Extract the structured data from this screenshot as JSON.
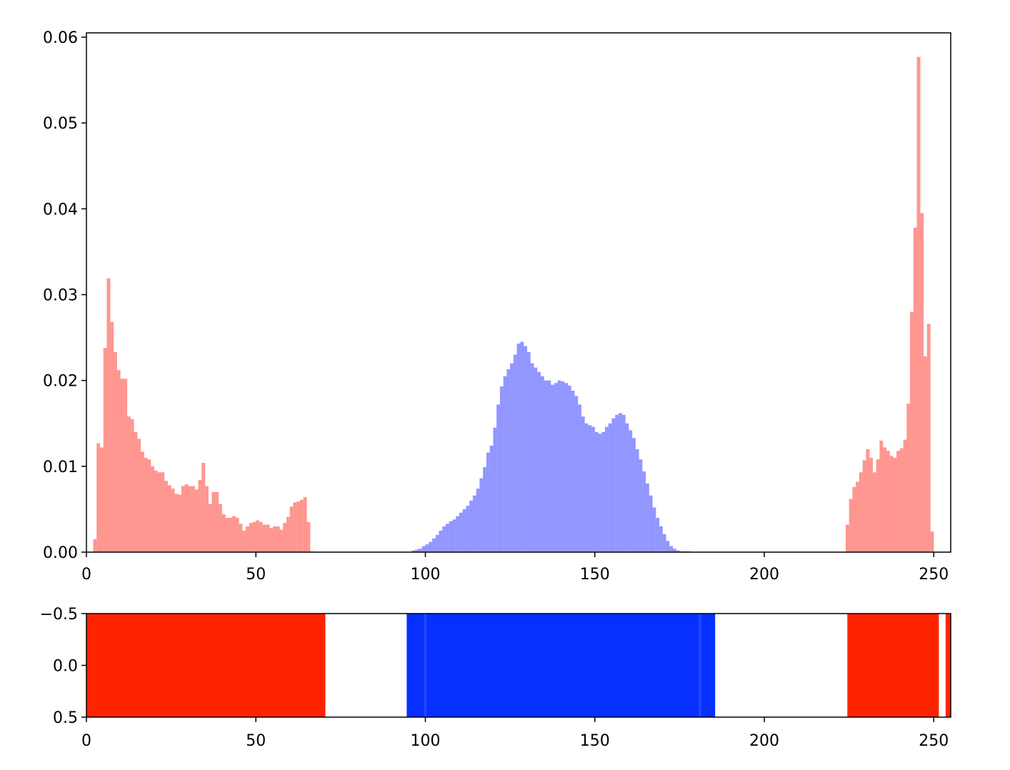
{
  "colors": {
    "hist_red": "#ff9690",
    "hist_blue": "#9296ff",
    "strip_red": "#ff2400",
    "strip_blue": "#0630ff",
    "strip_blue_light": "#2346ff",
    "axis": "#000000"
  },
  "chart_data": [
    {
      "type": "bar",
      "subtype": "histogram",
      "title": "",
      "xlabel": "",
      "ylabel": "",
      "xlim": [
        0,
        255
      ],
      "ylim": [
        0,
        0.0605
      ],
      "x_ticks": [
        0,
        50,
        100,
        150,
        200,
        250
      ],
      "y_ticks": [
        0.0,
        0.01,
        0.02,
        0.03,
        0.04,
        0.05,
        0.06
      ],
      "y_tick_labels": [
        "0.00",
        "0.01",
        "0.02",
        "0.03",
        "0.04",
        "0.05",
        "0.06"
      ],
      "bin_width": 1,
      "series": [
        {
          "color": "red",
          "segments": [
            {
              "start": 2,
              "values": [
                0.0015,
                0.0127,
                0.0122,
                0.0238,
                0.0319,
                0.0268,
                0.0233,
                0.0212,
                0.0202,
                0.0202,
                0.0158,
                0.0155,
                0.014,
                0.0132,
                0.0117,
                0.011,
                0.0108,
                0.01,
                0.0095,
                0.0093,
                0.0093,
                0.0083,
                0.0078,
                0.0074,
                0.0068,
                0.0067,
                0.0077,
                0.0079,
                0.0077,
                0.0077,
                0.0073,
                0.0084,
                0.0104,
                0.0077,
                0.0056,
                0.007,
                0.007,
                0.0056,
                0.0044,
                0.004,
                0.004,
                0.0042,
                0.004,
                0.0033,
                0.0025,
                0.003,
                0.0034,
                0.0035,
                0.0037,
                0.0035,
                0.0032,
                0.0032,
                0.0028,
                0.003,
                0.003,
                0.0026,
                0.0034,
                0.0041,
                0.0053,
                0.0058,
                0.0059,
                0.0061,
                0.0064,
                0.0035,
                0.0001
              ]
            },
            {
              "start": 224,
              "values": [
                0.0032,
                0.0062,
                0.0076,
                0.0082,
                0.0093,
                0.0107,
                0.012,
                0.011,
                0.0093,
                0.0108,
                0.013,
                0.0122,
                0.0118,
                0.0112,
                0.011,
                0.0118,
                0.0121,
                0.0131,
                0.0173,
                0.028,
                0.0378,
                0.0577,
                0.0395,
                0.0228,
                0.0266,
                0.0024
              ]
            }
          ]
        },
        {
          "color": "blue",
          "segments": [
            {
              "start": 96,
              "values": [
                0.0002,
                0.0003,
                0.0004,
                0.0007,
                0.0009,
                0.0012,
                0.0016,
                0.002,
                0.0025,
                0.003,
                0.0033,
                0.0036,
                0.0038,
                0.0042,
                0.0046,
                0.005,
                0.0054,
                0.006,
                0.0066,
                0.0074,
                0.0086,
                0.0099,
                0.0116,
                0.0124,
                0.0145,
                0.0172,
                0.0193,
                0.0205,
                0.0213,
                0.022,
                0.023,
                0.0243,
                0.0245,
                0.024,
                0.0233,
                0.022,
                0.0215,
                0.021,
                0.0205,
                0.02,
                0.02,
                0.0195,
                0.0197,
                0.02,
                0.0199,
                0.0197,
                0.0194,
                0.0188,
                0.0182,
                0.0172,
                0.0158,
                0.015,
                0.0148,
                0.0146,
                0.014,
                0.0138,
                0.014,
                0.0146,
                0.015,
                0.0156,
                0.016,
                0.0162,
                0.016,
                0.015,
                0.0142,
                0.0133,
                0.012,
                0.0108,
                0.0094,
                0.008,
                0.0066,
                0.0052,
                0.004,
                0.003,
                0.0021,
                0.0013,
                0.0007,
                0.0004,
                0.0002,
                0.0001,
                0.0001,
                0.0001
              ]
            }
          ]
        }
      ]
    },
    {
      "type": "heatmap",
      "title": "",
      "xlabel": "",
      "ylabel": "",
      "xlim": [
        0,
        255
      ],
      "ylim": [
        0.5,
        -0.5
      ],
      "x_ticks": [
        0,
        50,
        100,
        150,
        200,
        250
      ],
      "y_ticks": [
        -0.5,
        0.0,
        0.5
      ],
      "y_tick_labels": [
        "−0.5",
        "0.0",
        "0.5"
      ],
      "bands": [
        {
          "start": 0,
          "end": 70.5,
          "color": "red"
        },
        {
          "start": 94.5,
          "end": 185.5,
          "color": "blue"
        },
        {
          "start": 224.5,
          "end": 251.5,
          "color": "red"
        },
        {
          "start": 253.5,
          "end": 255,
          "color": "red"
        }
      ],
      "highlights": [
        {
          "start": 99.6,
          "end": 100.4,
          "color": "blue_light"
        },
        {
          "start": 180.6,
          "end": 181.4,
          "color": "blue_light"
        }
      ]
    }
  ]
}
